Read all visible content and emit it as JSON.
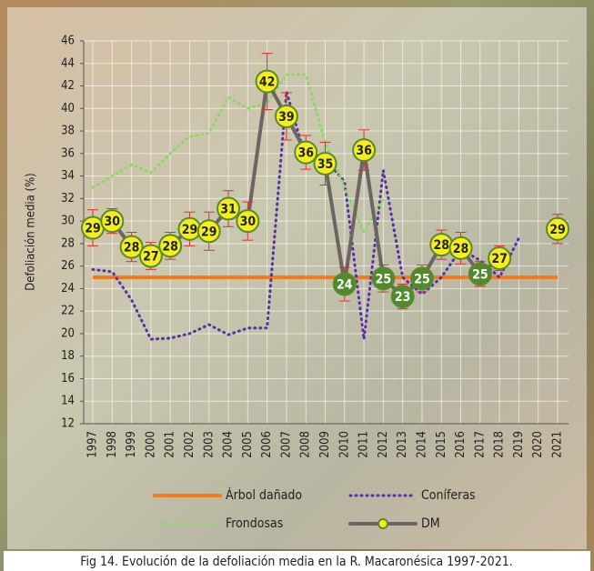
{
  "chart_data": {
    "type": "line",
    "y_label": "Defoliación media (%)",
    "caption": "Fig 14. Evolución de la defoliación media en la R. Macaronésica 1997-2021.",
    "categories": [
      "1997",
      "1998",
      "1999",
      "2000",
      "2001",
      "2002",
      "2003",
      "2004",
      "2005",
      "2006",
      "2007",
      "2008",
      "2009",
      "2010",
      "2011",
      "2012",
      "2013",
      "2014",
      "2015",
      "2016",
      "2017",
      "2018",
      "2019",
      "2020",
      "2021"
    ],
    "ylim": [
      12,
      46
    ],
    "yticks": [
      12,
      14,
      16,
      18,
      20,
      22,
      24,
      26,
      28,
      30,
      32,
      34,
      36,
      38,
      40,
      42,
      44,
      46
    ],
    "grid": true,
    "threshold": {
      "name": "Árbol dañado",
      "color": "#f47a20",
      "value": 25
    },
    "series": [
      {
        "name": "Coníferas",
        "color": "#5a2ea6",
        "style": "dotted",
        "values": [
          25.7,
          25.5,
          23,
          19.5,
          19.6,
          20,
          20.8,
          19.9,
          20.5,
          20.5,
          41.5,
          35.5,
          35.5,
          33.5,
          19.5,
          34.5,
          25,
          23.5,
          25,
          27.5,
          26.5,
          25,
          28.5,
          null,
          null
        ]
      },
      {
        "name": "Frondosas",
        "color": "#8fd66a",
        "style": "dotted",
        "values": [
          33,
          34,
          35,
          34.3,
          36,
          37.5,
          37.8,
          41,
          40,
          40.5,
          43,
          43,
          37,
          33,
          29,
          32,
          null,
          null,
          null,
          null,
          null,
          null,
          null,
          null,
          null
        ]
      },
      {
        "name": "DM",
        "color": "#6e6464",
        "style": "solid",
        "marker_color_above": "#f3ee1c",
        "marker_color_below": "#4f8a2e",
        "error_color": "#e0302a",
        "values": [
          29.4,
          30,
          27.7,
          26.9,
          27.8,
          29.3,
          29.1,
          31.1,
          30,
          42.4,
          39.3,
          36.1,
          35.1,
          24.4,
          36.3,
          24.9,
          23.3,
          24.9,
          27.9,
          27.6,
          25.3,
          26.7,
          null,
          null,
          29.3
        ],
        "value_labels": [
          "29",
          "30",
          "28",
          "27",
          "28",
          "29",
          "29",
          "31",
          "30",
          "42",
          "39",
          "36",
          "35",
          "24",
          "36",
          "25",
          "23",
          "25",
          "28",
          "28",
          "25",
          "27",
          null,
          null,
          "29"
        ],
        "errors": [
          1.6,
          1.1,
          1.3,
          1.2,
          1.2,
          1.5,
          1.7,
          1.6,
          1.7,
          2.5,
          2.1,
          1.5,
          1.9,
          1.5,
          1.8,
          1.2,
          1.1,
          1.2,
          1.3,
          1.4,
          1.1,
          1.1,
          null,
          null,
          1.3
        ]
      }
    ]
  }
}
